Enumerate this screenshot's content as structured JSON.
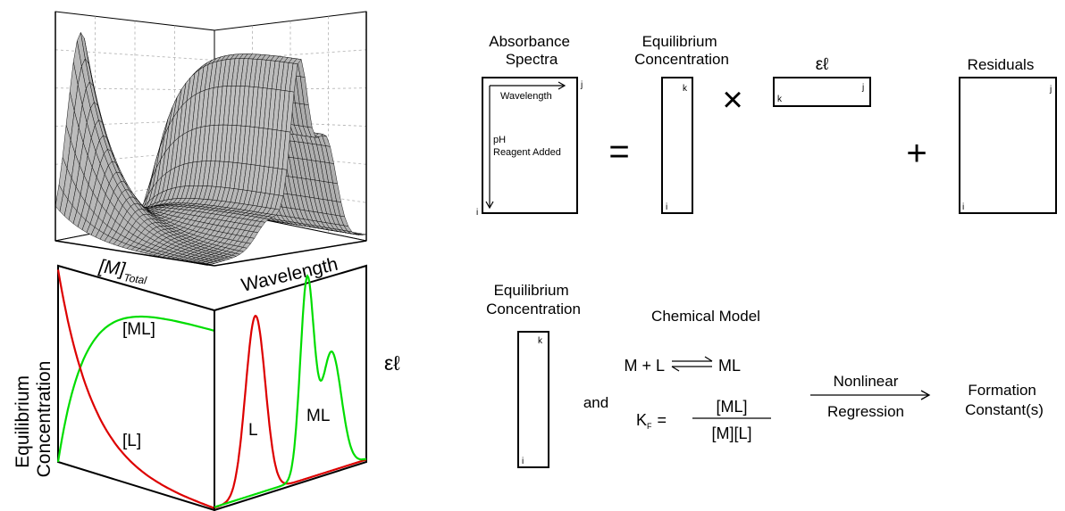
{
  "surface_plot": {
    "axis_total_label": "[M]",
    "axis_total_sub": "Total",
    "axis_wavelength_label": "Wavelength"
  },
  "concentration_panel": {
    "ylabel_line1": "Equilibrium",
    "ylabel_line2": "Concentration",
    "curve_ml_label": "[ML]",
    "curve_l_label": "[L]",
    "colors": {
      "ml": "#00dd00",
      "l": "#dd0000"
    }
  },
  "absorptivity_panel": {
    "ylabel": "εℓ",
    "peak_l_label": "L",
    "peak_ml_label": "ML"
  },
  "matrix_equation": {
    "absorbance": {
      "title_line1": "Absorbance",
      "title_line2": "Spectra",
      "axis_col_label": "Wavelength",
      "axis_row_label_line1": "pH",
      "axis_row_label_line2": "Reagent Added",
      "row_index": "i",
      "col_index": "j"
    },
    "equals_sign": "=",
    "concentration": {
      "title_line1": "Equilibrium",
      "title_line2": "Concentration",
      "row_index": "i",
      "col_index": "k"
    },
    "times_sign": "×",
    "molar_abs": {
      "title": "εℓ",
      "row_index": "k",
      "col_index": "j"
    },
    "plus_sign": "+",
    "residuals": {
      "title": "Residuals",
      "row_index": "i",
      "col_index": "j"
    }
  },
  "model_section": {
    "conc_title_line1": "Equilibrium",
    "conc_title_line2": "Concentration",
    "conc_row_index": "i",
    "conc_col_index": "k",
    "and_label": "and",
    "chem_model_title": "Chemical Model",
    "reaction_left": "M + L",
    "reaction_right": "ML",
    "kf_symbol": "K",
    "kf_sub": "F",
    "kf_eq": "=",
    "kf_numerator": "[ML]",
    "kf_denominator": "[M][L]",
    "arrow_top": "Nonlinear",
    "arrow_bottom": "Regression",
    "result_line1": "Formation",
    "result_line2": "Constant(s)"
  }
}
